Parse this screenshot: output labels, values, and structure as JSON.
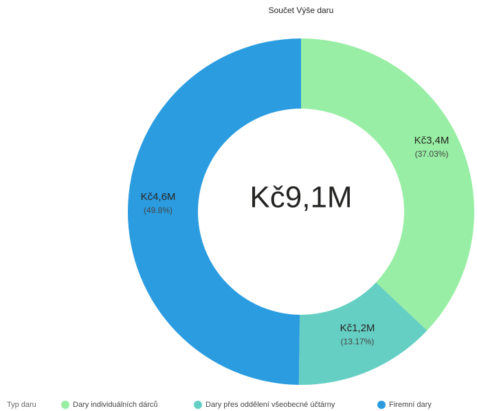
{
  "chart_data": {
    "type": "donut",
    "title": "Součet Výše daru",
    "categories": [
      "Dary individuálních dárců",
      "Dary přes oddělení všeobecné účtárny",
      "Firemní dary"
    ],
    "colors": [
      "#98eea4",
      "#66cfc4",
      "#2b9ce0"
    ],
    "values": [
      3400000,
      1200000,
      4600000
    ],
    "value_labels": [
      "Kč3,4M",
      "Kč1,2M",
      "Kč4,6M"
    ],
    "percentages": [
      37.03,
      13.17,
      49.8
    ],
    "percentage_labels": [
      "(37.03%)",
      "(13.17%)",
      "(49.8%)"
    ],
    "total": 9100000,
    "total_label": "Kč9,1M",
    "legend_title": "Typ daru",
    "legend": "bottom-left"
  }
}
